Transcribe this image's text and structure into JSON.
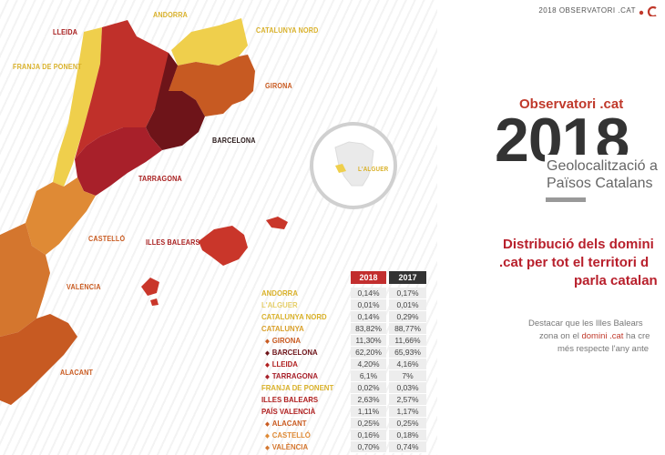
{
  "header": {
    "title": "2018 OBSERVATORI .CAT"
  },
  "brand": {
    "title": "Observatori .cat",
    "year": "2018",
    "subtitle_line1": "Geolocalització a",
    "subtitle_line2": "Països Catalans"
  },
  "distribution": {
    "line1": "Distribució dels domini",
    "line2": ".cat per tot el territori d",
    "line3": "parla catalan"
  },
  "description": {
    "line1": "Destacar que les Illes Balears",
    "line2_a": "zona on el ",
    "line2_highlight": "domini .cat",
    "line2_b": " ha cre",
    "line3": "més respecte l'any ante"
  },
  "map_labels": {
    "andorra": "ANDORRA",
    "lleida": "LLEIDA",
    "catalunya_nord": "CATALUNYA NORD",
    "franja": "FRANJA DE PONENT",
    "girona": "GIRONA",
    "barcelona": "BARCELONA",
    "tarragona": "TARRAGONA",
    "castello": "CASTELLÓ",
    "illes_balears": "ILLES BALEARS",
    "valencia": "VALÈNCIA",
    "alacant": "ALACANT",
    "alguer": "L'ALGUER"
  },
  "colors": {
    "darkest": "#6e1419",
    "dark_red": "#b8232a",
    "red": "#c9362a",
    "orange_dark": "#c75a22",
    "orange": "#df8a35",
    "yellow": "#efcf4c"
  },
  "table": {
    "col_2018": "2018",
    "col_2017": "2017",
    "rows": [
      {
        "name": "ANDORRA",
        "v2018": "0,14%",
        "v2017": "0,17%"
      },
      {
        "name": "L'ALGUER",
        "v2018": "0,01%",
        "v2017": "0,01%"
      },
      {
        "name": "CATALUNYA NORD",
        "v2018": "0,14%",
        "v2017": "0,29%"
      },
      {
        "name": "CATALUNYA",
        "v2018": "83,82%",
        "v2017": "88,77%"
      },
      {
        "name": "GIRONA",
        "v2018": "11,30%",
        "v2017": "11,66%"
      },
      {
        "name": "BARCELONA",
        "v2018": "62,20%",
        "v2017": "65,93%"
      },
      {
        "name": "LLEIDA",
        "v2018": "4,20%",
        "v2017": "4,16%"
      },
      {
        "name": "TARRAGONA",
        "v2018": "6,1%",
        "v2017": "7%"
      },
      {
        "name": "FRANJA DE PONENT",
        "v2018": "0,02%",
        "v2017": "0,03%"
      },
      {
        "name": "ILLES BALEARS",
        "v2018": "2,63%",
        "v2017": "2,57%"
      },
      {
        "name": "PAÍS VALENCIÀ",
        "v2018": "1,11%",
        "v2017": "1,17%"
      },
      {
        "name": "ALACANT",
        "v2018": "0,25%",
        "v2017": "0,25%"
      },
      {
        "name": "CASTELLÓ",
        "v2018": "0,16%",
        "v2017": "0,18%"
      },
      {
        "name": "VALÈNCIA",
        "v2018": "0,70%",
        "v2017": "0,74%"
      }
    ]
  }
}
